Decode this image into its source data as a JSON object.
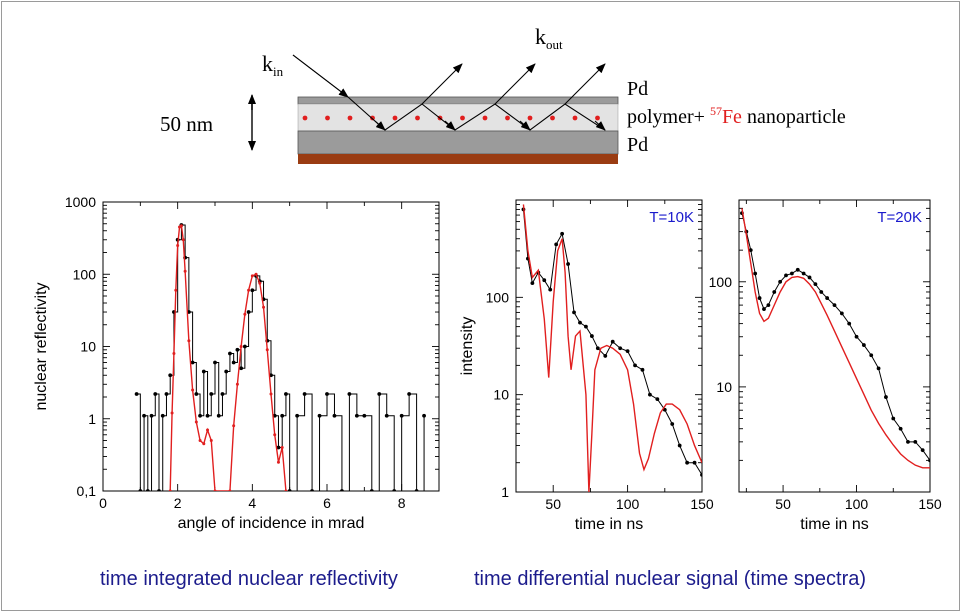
{
  "diagram": {
    "k_in_base": "k",
    "k_in_sub": "in",
    "k_out_base": "k",
    "k_out_sub": "out",
    "thickness_label": "50 nm",
    "top_layer_label": "Pd",
    "middle_label_prefix": "polymer+ ",
    "isotope_mass": "57",
    "isotope_symbol": "Fe",
    "middle_label_suffix": " nanoparticle",
    "bottom_layer_label": "Pd",
    "colors": {
      "pd_layer": "#9b9b9b",
      "polymer_layer": "#e3e3e3",
      "substrate": "#9a3c12",
      "particles": "#e11f1f",
      "isotope": "#e11f1f"
    }
  },
  "chart_data": [
    {
      "type": "line",
      "title": "",
      "xlabel": "angle of incidence in mrad",
      "ylabel": "nuclear reflectivity",
      "xlim": [
        0,
        9
      ],
      "ylim": [
        0.1,
        1000
      ],
      "yscale": "log",
      "xticks": [
        0,
        2,
        4,
        6,
        8
      ],
      "yticks": [
        0.1,
        1,
        10,
        100,
        1000
      ],
      "ytick_labels": [
        "0,1",
        "1",
        "10",
        "100",
        "1000"
      ],
      "grid": false,
      "series": [
        {
          "color": "#000000",
          "marker": "dot",
          "x": [
            0.9,
            1.0,
            1.1,
            1.2,
            1.3,
            1.4,
            1.5,
            1.6,
            1.7,
            1.8,
            1.9,
            2.0,
            2.1,
            2.2,
            2.3,
            2.4,
            2.5,
            2.6,
            2.7,
            2.8,
            2.9,
            3.0,
            3.1,
            3.2,
            3.3,
            3.4,
            3.5,
            3.6,
            3.7,
            3.8,
            3.9,
            4.0,
            4.1,
            4.2,
            4.3,
            4.4,
            4.5,
            4.6,
            4.7,
            4.8,
            4.9,
            5.0,
            5.2,
            5.4,
            5.6,
            5.8,
            6.0,
            6.2,
            6.4,
            6.6,
            6.8,
            7.0,
            7.2,
            7.4,
            7.6,
            7.8,
            8.0,
            8.2,
            8.4,
            8.6
          ],
          "y": [
            2.2,
            0.1,
            1.1,
            0.1,
            1.1,
            2.2,
            0.1,
            1.1,
            2.2,
            4.0,
            30,
            300,
            480,
            170,
            30,
            6,
            2.2,
            1.1,
            4.5,
            1.1,
            2.2,
            6,
            1.1,
            2.2,
            4.5,
            8,
            6,
            9,
            5,
            10,
            30,
            60,
            95,
            80,
            45,
            12,
            4,
            1.1,
            0.4,
            1.1,
            2.2,
            0.1,
            1.1,
            2.2,
            0.1,
            1.1,
            2.2,
            1.1,
            0.1,
            2.2,
            1.1,
            1.1,
            0.1,
            2.2,
            1.1,
            0.1,
            1.1,
            2.2,
            0.1,
            1.1
          ]
        },
        {
          "color": "#e11f1f",
          "marker": "dot",
          "x": [
            1.8,
            1.85,
            1.9,
            1.95,
            2.0,
            2.05,
            2.1,
            2.15,
            2.2,
            2.3,
            2.4,
            2.5,
            2.6,
            2.7,
            2.8,
            2.9,
            3.0,
            3.4,
            3.5,
            3.6,
            3.7,
            3.8,
            3.9,
            4.0,
            4.1,
            4.2,
            4.3,
            4.4,
            4.5,
            4.6,
            4.7,
            4.8,
            4.9
          ],
          "y": [
            0.1,
            1.2,
            8,
            60,
            250,
            450,
            470,
            300,
            110,
            12,
            2.5,
            0.9,
            0.5,
            0.45,
            0.7,
            0.5,
            0.1,
            0.1,
            0.8,
            3,
            10,
            28,
            60,
            95,
            100,
            75,
            35,
            9,
            2.2,
            0.6,
            0.25,
            0.4,
            0.1
          ]
        }
      ]
    },
    {
      "type": "line",
      "title": "",
      "annotation": "T=10K",
      "xlabel": "time in ns",
      "ylabel": "intensity",
      "xlim": [
        25,
        150
      ],
      "ylim": [
        1,
        1000
      ],
      "yscale": "log",
      "xticks": [
        50,
        100,
        150
      ],
      "yticks": [
        1,
        10,
        100
      ],
      "grid": false,
      "series": [
        {
          "color": "#000000",
          "marker": "dot",
          "x": [
            30,
            33,
            36,
            40,
            44,
            48,
            52,
            56,
            60,
            64,
            68,
            72,
            76,
            80,
            85,
            90,
            95,
            100,
            105,
            110,
            115,
            120,
            125,
            130,
            135,
            140,
            145,
            150
          ],
          "y": [
            800,
            250,
            140,
            180,
            150,
            120,
            350,
            450,
            220,
            70,
            55,
            50,
            40,
            30,
            25,
            35,
            30,
            28,
            20,
            18,
            10,
            9,
            7,
            5,
            3,
            2,
            2,
            1.5
          ]
        },
        {
          "color": "#e11f1f",
          "marker": "none",
          "x": [
            30,
            33,
            36,
            40,
            44,
            47,
            50,
            53,
            56,
            58,
            60,
            62,
            65,
            68,
            72,
            74,
            76,
            78,
            82,
            86,
            90,
            95,
            100,
            104,
            108,
            111,
            114,
            118,
            122,
            126,
            130,
            135,
            140,
            145,
            150
          ],
          "y": [
            900,
            300,
            160,
            190,
            60,
            15,
            90,
            300,
            400,
            180,
            40,
            18,
            40,
            45,
            10,
            1.0,
            4,
            18,
            30,
            32,
            30,
            26,
            18,
            8,
            2.5,
            1.7,
            2.2,
            4,
            6.5,
            8,
            8,
            7,
            5,
            3,
            2
          ]
        }
      ]
    },
    {
      "type": "line",
      "title": "",
      "annotation": "T=20K",
      "xlabel": "time in ns",
      "ylabel": "",
      "xlim": [
        20,
        150
      ],
      "ylim": [
        1,
        600
      ],
      "yscale": "log",
      "xticks": [
        50,
        100,
        150
      ],
      "yticks": [
        10,
        100
      ],
      "grid": false,
      "series": [
        {
          "color": "#000000",
          "marker": "dot",
          "x": [
            22,
            25,
            28,
            31,
            34,
            37,
            40,
            44,
            48,
            52,
            56,
            60,
            64,
            68,
            72,
            76,
            80,
            85,
            90,
            95,
            100,
            105,
            110,
            115,
            120,
            125,
            130,
            135,
            140,
            145,
            150
          ],
          "y": [
            450,
            300,
            200,
            120,
            70,
            55,
            60,
            80,
            100,
            115,
            120,
            130,
            120,
            110,
            95,
            80,
            70,
            60,
            50,
            40,
            30,
            25,
            20,
            15,
            8,
            5,
            4,
            3,
            3,
            2.5,
            2
          ]
        },
        {
          "color": "#e11f1f",
          "marker": "none",
          "x": [
            22,
            25,
            28,
            31,
            34,
            37,
            40,
            44,
            48,
            52,
            56,
            60,
            64,
            68,
            72,
            76,
            80,
            85,
            90,
            95,
            100,
            105,
            110,
            115,
            120,
            125,
            130,
            135,
            140,
            145,
            150
          ],
          "y": [
            500,
            280,
            150,
            80,
            50,
            42,
            45,
            60,
            80,
            100,
            110,
            112,
            108,
            95,
            80,
            62,
            48,
            34,
            24,
            17,
            12,
            8.5,
            6,
            4.5,
            3.5,
            2.8,
            2.3,
            2.0,
            1.8,
            1.7,
            1.7
          ]
        }
      ]
    }
  ],
  "captions": {
    "left": "time integrated nuclear reflectivity",
    "right": "time differential nuclear signal (time spectra)"
  }
}
